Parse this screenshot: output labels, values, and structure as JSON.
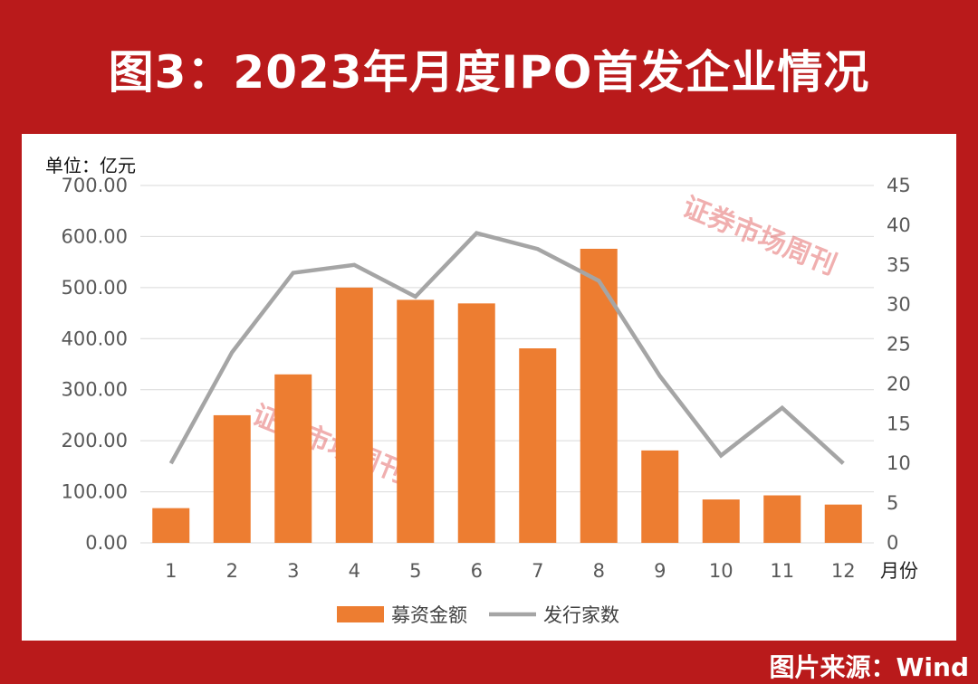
{
  "title": "图3：2023年月度IPO首发企业情况",
  "unit_label": "单位：亿元",
  "source": "图片来源：Wind",
  "watermark_text": "证券市场周刊",
  "colors": {
    "background": "#b91a1b",
    "bar": "#ed7d31",
    "line": "#a5a5a5",
    "grid": "#d9d9d9",
    "watermark": "#e05050"
  },
  "chart_data": {
    "type": "bar",
    "title": "图3：2023年月度IPO首发企业情况",
    "categories": [
      "1",
      "2",
      "3",
      "4",
      "5",
      "6",
      "7",
      "8",
      "9",
      "10",
      "11",
      "12"
    ],
    "xlabel": "月份",
    "ylabel": "单位：亿元",
    "series": [
      {
        "name": "募资金额",
        "type": "bar",
        "axis": "left",
        "values": [
          68,
          250,
          330,
          500,
          476,
          469,
          381,
          576,
          181,
          85,
          93,
          75
        ]
      },
      {
        "name": "发行家数",
        "type": "line",
        "axis": "right",
        "values": [
          10,
          24,
          34,
          35,
          31,
          39,
          37,
          33,
          21,
          11,
          17,
          10
        ]
      }
    ],
    "ylim": [
      0,
      700
    ],
    "y2lim": [
      0,
      45
    ],
    "yticks": [
      "0.00",
      "100.00",
      "200.00",
      "300.00",
      "400.00",
      "500.00",
      "600.00",
      "700.00"
    ],
    "y2ticks": [
      "0",
      "5",
      "10",
      "15",
      "20",
      "25",
      "30",
      "35",
      "40",
      "45"
    ],
    "grid": true,
    "legend": "bottom"
  }
}
